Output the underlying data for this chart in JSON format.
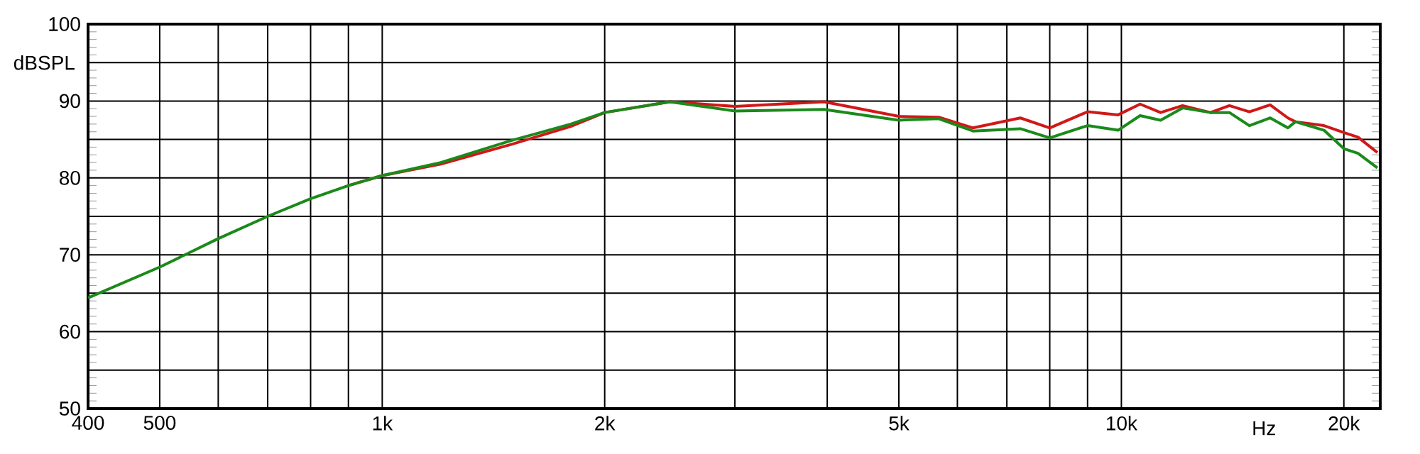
{
  "chart_data": {
    "type": "line",
    "xlabel": "Hz",
    "ylabel": "dBSPL",
    "log": "x",
    "grid": true,
    "marker": "none",
    "line_style": "solid",
    "xlim": [
      400,
      22400
    ],
    "ylim": [
      50,
      100
    ],
    "xticks": [
      400,
      500,
      {
        "value": 600,
        "label": null
      },
      {
        "value": 700,
        "label": null
      },
      {
        "value": 800,
        "label": null
      },
      {
        "value": 900,
        "label": null
      },
      {
        "value": 1000,
        "label": "1k"
      },
      {
        "value": 2000,
        "label": "2k"
      },
      {
        "value": 3000,
        "label": null
      },
      {
        "value": 4000,
        "label": null
      },
      {
        "value": 5000,
        "label": "5k"
      },
      {
        "value": 6000,
        "label": null
      },
      {
        "value": 7000,
        "label": null
      },
      {
        "value": 8000,
        "label": null
      },
      {
        "value": 9000,
        "label": null
      },
      {
        "value": 10000,
        "label": "10k"
      },
      {
        "value": 20000,
        "label": "20k"
      }
    ],
    "yticks": [
      50,
      {
        "value": 55,
        "label": null
      },
      60,
      {
        "value": 65,
        "label": null
      },
      70,
      {
        "value": 75,
        "label": null
      },
      80,
      {
        "value": 85,
        "label": null
      },
      90,
      {
        "value": 95,
        "label": null
      },
      100
    ],
    "x": [
      400,
      500,
      600,
      700,
      800,
      900,
      1000,
      1200,
      1500,
      1800,
      2000,
      2450,
      3000,
      3960,
      5000,
      5660,
      6300,
      7300,
      8000,
      9000,
      9900,
      10600,
      11300,
      12100,
      13200,
      14000,
      14900,
      15900,
      16800,
      17200,
      18800,
      20000,
      20900,
      22200
    ],
    "series": [
      {
        "color": "#d01818",
        "values": [
          null,
          null,
          null,
          null,
          null,
          79.0,
          80.3,
          81.8,
          84.4,
          86.7,
          88.5,
          89.9,
          89.3,
          89.9,
          88.0,
          87.9,
          86.5,
          87.8,
          86.5,
          88.6,
          88.2,
          89.6,
          88.5,
          89.4,
          88.5,
          89.4,
          88.6,
          89.5,
          87.8,
          87.3,
          86.8,
          85.9,
          85.3,
          83.3
        ]
      },
      {
        "color": "#1a8a1a",
        "values": [
          64.4,
          68.4,
          72.1,
          75.0,
          77.3,
          79.0,
          80.3,
          82.0,
          84.9,
          87.0,
          88.5,
          89.9,
          88.7,
          88.9,
          87.5,
          87.7,
          86.1,
          86.4,
          85.2,
          86.8,
          86.2,
          88.1,
          87.5,
          89.1,
          88.5,
          88.5,
          86.8,
          87.8,
          86.5,
          87.3,
          86.2,
          83.8,
          83.2,
          81.3
        ]
      }
    ]
  }
}
